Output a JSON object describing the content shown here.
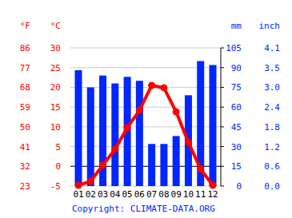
{
  "chart_data": {
    "type": "bar",
    "categories": [
      "01",
      "02",
      "03",
      "04",
      "05",
      "06",
      "07",
      "08",
      "09",
      "10",
      "11",
      "12"
    ],
    "series": [
      {
        "type": "bar",
        "axis": "y2",
        "color": "#0026ff",
        "values": [
          88,
          75,
          84,
          78,
          83,
          80,
          32,
          32,
          38,
          69,
          95,
          92
        ]
      },
      {
        "type": "line",
        "color": "#ff0000",
        "marker": "circle",
        "line_style": "solid",
        "values": [
          -4.8,
          -3.8,
          0.3,
          4.3,
          9.8,
          14.2,
          20.5,
          19.9,
          13.8,
          6.1,
          -0.7,
          -4.8
        ]
      }
    ],
    "y_label": "°C",
    "y_label_fahrenheit": "°F",
    "y2_label": "mm",
    "y2_label_inch": "inch",
    "ylim": [
      -5,
      30
    ],
    "yticks": [
      -5,
      0,
      5,
      10,
      15,
      20,
      25,
      30
    ],
    "yticks_fahrenheit": [
      {
        "value": -5,
        "label": "23"
      },
      {
        "value": 0,
        "label": "32"
      },
      {
        "value": 5,
        "label": "41"
      },
      {
        "value": 10,
        "label": "50"
      },
      {
        "value": 15,
        "label": "59"
      },
      {
        "value": 20,
        "label": "68"
      },
      {
        "value": 25,
        "label": "77"
      },
      {
        "value": 30,
        "label": "86"
      }
    ],
    "y2lim": [
      0,
      105
    ],
    "y2ticks": [
      0,
      15,
      30,
      45,
      60,
      75,
      90,
      105
    ],
    "y2ticks_inch": [
      {
        "value": 0,
        "label": "0.0"
      },
      {
        "value": 15,
        "label": "0.6"
      },
      {
        "value": 30,
        "label": "1.2"
      },
      {
        "value": 45,
        "label": "1.8"
      },
      {
        "value": 60,
        "label": "2.4"
      },
      {
        "value": 75,
        "label": "3.0"
      },
      {
        "value": 90,
        "label": "3.5"
      },
      {
        "value": 105,
        "label": "4.1"
      }
    ],
    "grid": true,
    "source": "Copyright: CLIMATE-DATA.ORG"
  }
}
